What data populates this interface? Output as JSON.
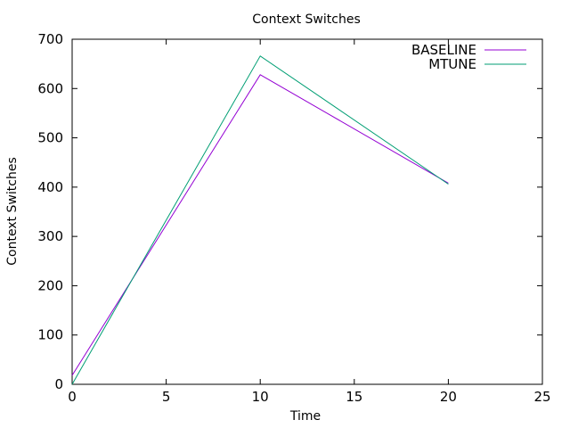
{
  "chart_data": {
    "type": "line",
    "title": "Context Switches",
    "xlabel": "Time",
    "ylabel": "Context Switches",
    "xlim": [
      0,
      25
    ],
    "ylim": [
      0,
      700
    ],
    "x_ticks": [
      0,
      5,
      10,
      15,
      20,
      25
    ],
    "y_ticks": [
      0,
      100,
      200,
      300,
      400,
      500,
      600,
      700
    ],
    "grid": false,
    "legend_position": "top-right",
    "series": [
      {
        "name": "BASELINE",
        "color": "#9400d3",
        "x": [
          0,
          10,
          20
        ],
        "y": [
          18,
          628,
          408
        ]
      },
      {
        "name": "MTUNE",
        "color": "#009e73",
        "x": [
          0,
          10,
          20
        ],
        "y": [
          0,
          666,
          406
        ]
      }
    ]
  }
}
